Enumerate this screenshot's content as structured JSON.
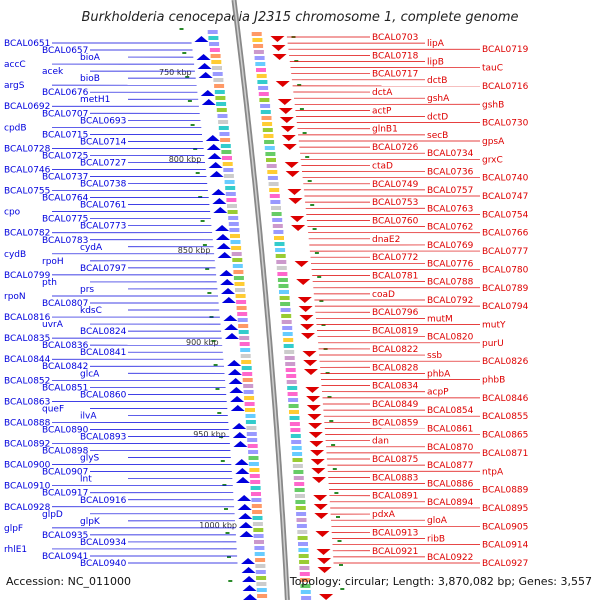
{
  "title": "Burkholderia cenocepacia J2315 chromosome 1, complete genome",
  "accession": "Accession: NC_011000",
  "summary": "Topology: circular; Length: 3,870,082 bp; Genes: 3,557",
  "colors": {
    "left_genes": "#0000dd",
    "right_genes": "#dd0000",
    "backbone": "#888888",
    "ticks": "#2a8a2a"
  },
  "scale_labels": [
    "750 kbp",
    "800 kbp",
    "850 kbp",
    "900 kbp",
    "950 kbp",
    "1000 kbp"
  ],
  "left_labels": [
    "BCAL0651",
    "BCAL0657",
    "bioA",
    "accC",
    "acek",
    "bioB",
    "argS",
    "BCAL0676",
    "metH1",
    "BCAL0692",
    "BCAL0707",
    "BCAL0693",
    "cpdB",
    "BCAL0715",
    "BCAL0714",
    "BCAL0728",
    "BCAL0725",
    "BCAL0727",
    "BCAL0746",
    "BCAL0737",
    "BCAL0738",
    "BCAL0755",
    "BCAL0764",
    "BCAL0761",
    "cpo",
    "BCAL0775",
    "BCAL0773",
    "BCAL0782",
    "BCAL0783",
    "cydA",
    "cydB",
    "rpoH",
    "BCAL0797",
    "BCAL0799",
    "pth",
    "prs",
    "rpoN",
    "BCAL0807",
    "kdsC",
    "BCAL0816",
    "uvrA",
    "BCAL0824",
    "BCAL0835",
    "BCAL0836",
    "BCAL0841",
    "BCAL0844",
    "BCAL0842",
    "glcA",
    "BCAL0852",
    "BCAL0851",
    "BCAL0860",
    "BCAL0863",
    "queF",
    "ilvA",
    "BCAL0888",
    "BCAL0890",
    "BCAL0893",
    "BCAL0892",
    "BCAL0898",
    "glyS",
    "BCAL0900",
    "BCAL0907",
    "lnt",
    "BCAL0910",
    "BCAL0917",
    "BCAL0916",
    "BCAL0928",
    "glpD",
    "glpK",
    "glpF",
    "BCAL0935",
    "BCAL0934",
    "rhlE1",
    "BCAL0941",
    "BCAL0940"
  ],
  "right_labels": [
    "BCAL0703",
    "lipA",
    "BCAL0719",
    "BCAL0718",
    "lipB",
    "tauC",
    "BCAL0717",
    "dctB",
    "BCAL0716",
    "dctA",
    "gshA",
    "gshB",
    "actP",
    "dctD",
    "BCAL0730",
    "glnB1",
    "secB",
    "gpsA",
    "BCAL0726",
    "BCAL0734",
    "grxC",
    "ctaD",
    "BCAL0736",
    "BCAL0740",
    "BCAL0749",
    "BCAL0757",
    "BCAL0747",
    "BCAL0753",
    "BCAL0763",
    "BCAL0754",
    "BCAL0760",
    "BCAL0762",
    "BCAL0766",
    "dnaE2",
    "BCAL0769",
    "BCAL0777",
    "BCAL0772",
    "BCAL0776",
    "BCAL0780",
    "BCAL0781",
    "BCAL0788",
    "BCAL0789",
    "coaD",
    "BCAL0792",
    "BCAL0794",
    "BCAL0796",
    "mutM",
    "mutY",
    "BCAL0819",
    "BCAL0820",
    "purU",
    "BCAL0822",
    "ssb",
    "BCAL0826",
    "BCAL0828",
    "phbA",
    "phbB",
    "BCAL0834",
    "acpP",
    "BCAL0846",
    "BCAL0849",
    "BCAL0854",
    "BCAL0855",
    "BCAL0859",
    "BCAL0861",
    "BCAL0865",
    "dan",
    "BCAL0870",
    "BCAL0871",
    "BCAL0875",
    "BCAL0877",
    "ntpA",
    "BCAL0883",
    "BCAL0886",
    "BCAL0889",
    "BCAL0891",
    "BCAL0894",
    "BCAL0895",
    "pdxA",
    "gloA",
    "BCAL0905",
    "BCAL0913",
    "ribB",
    "BCAL0914",
    "BCAL0921",
    "BCAL0922",
    "BCAL0927"
  ]
}
